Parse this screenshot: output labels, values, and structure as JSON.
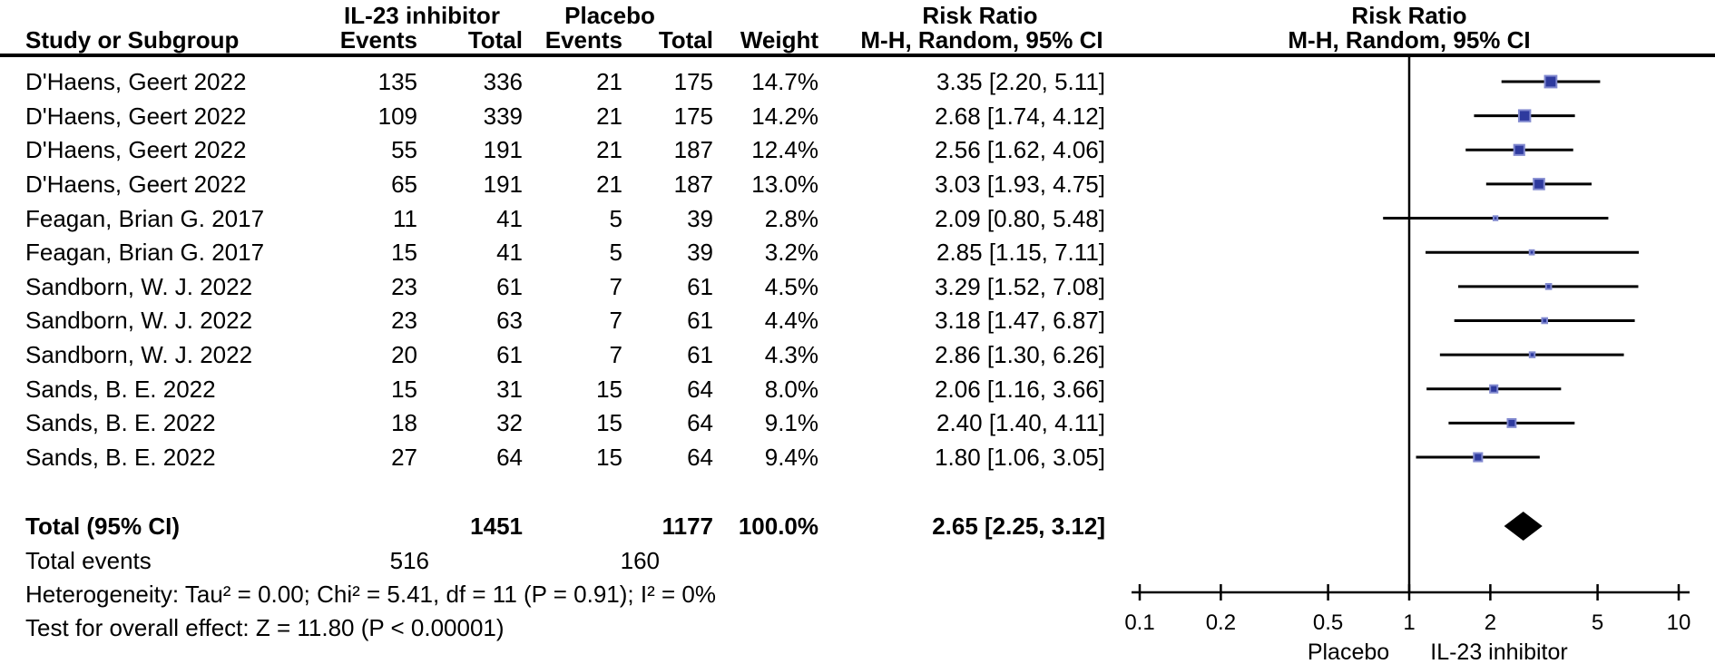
{
  "header": {
    "group_treatment": "IL-23 inhibitor",
    "group_control": "Placebo",
    "study": "Study or Subgroup",
    "events": "Events",
    "total": "Total",
    "weight": "Weight",
    "risk_ratio_line1": "Risk Ratio",
    "risk_ratio_line2": "M-H, Random, 95% CI"
  },
  "chart_data": {
    "type": "forest",
    "x_scale": "log10",
    "x_range": [
      0.1,
      10
    ],
    "axis_ticks": [
      "0.1",
      "0.2",
      "0.5",
      "1",
      "2",
      "5",
      "10"
    ],
    "axis_tick_values": [
      0.1,
      0.2,
      0.5,
      1,
      2,
      5,
      10
    ],
    "null_line": 1,
    "axis_left_label": "Placebo",
    "axis_right_label": "IL-23 inhibitor",
    "marker_color": "#2e3a9e",
    "marker_halo_color": "#8189cf",
    "line_color": "#000000",
    "rows": [
      {
        "study": "D'Haens, Geert 2022",
        "events1": 135,
        "total1": 336,
        "events2": 21,
        "total2": 175,
        "weight": "14.7%",
        "rr": 3.35,
        "lo": 2.2,
        "hi": 5.11,
        "ci_label": "3.35 [2.20, 5.11]"
      },
      {
        "study": "D'Haens, Geert 2022",
        "events1": 109,
        "total1": 339,
        "events2": 21,
        "total2": 175,
        "weight": "14.2%",
        "rr": 2.68,
        "lo": 1.74,
        "hi": 4.12,
        "ci_label": "2.68 [1.74, 4.12]"
      },
      {
        "study": "D'Haens, Geert 2022",
        "events1": 55,
        "total1": 191,
        "events2": 21,
        "total2": 187,
        "weight": "12.4%",
        "rr": 2.56,
        "lo": 1.62,
        "hi": 4.06,
        "ci_label": "2.56 [1.62, 4.06]"
      },
      {
        "study": "D'Haens, Geert 2022",
        "events1": 65,
        "total1": 191,
        "events2": 21,
        "total2": 187,
        "weight": "13.0%",
        "rr": 3.03,
        "lo": 1.93,
        "hi": 4.75,
        "ci_label": "3.03 [1.93, 4.75]"
      },
      {
        "study": "Feagan, Brian G. 2017",
        "events1": 11,
        "total1": 41,
        "events2": 5,
        "total2": 39,
        "weight": "2.8%",
        "rr": 2.09,
        "lo": 0.8,
        "hi": 5.48,
        "ci_label": "2.09 [0.80, 5.48]"
      },
      {
        "study": "Feagan, Brian G. 2017",
        "events1": 15,
        "total1": 41,
        "events2": 5,
        "total2": 39,
        "weight": "3.2%",
        "rr": 2.85,
        "lo": 1.15,
        "hi": 7.11,
        "ci_label": "2.85 [1.15, 7.11]"
      },
      {
        "study": "Sandborn, W. J. 2022",
        "events1": 23,
        "total1": 61,
        "events2": 7,
        "total2": 61,
        "weight": "4.5%",
        "rr": 3.29,
        "lo": 1.52,
        "hi": 7.08,
        "ci_label": "3.29 [1.52, 7.08]"
      },
      {
        "study": "Sandborn, W. J. 2022",
        "events1": 23,
        "total1": 63,
        "events2": 7,
        "total2": 61,
        "weight": "4.4%",
        "rr": 3.18,
        "lo": 1.47,
        "hi": 6.87,
        "ci_label": "3.18 [1.47, 6.87]"
      },
      {
        "study": "Sandborn, W. J. 2022",
        "events1": 20,
        "total1": 61,
        "events2": 7,
        "total2": 61,
        "weight": "4.3%",
        "rr": 2.86,
        "lo": 1.3,
        "hi": 6.26,
        "ci_label": "2.86 [1.30, 6.26]"
      },
      {
        "study": "Sands, B. E. 2022",
        "events1": 15,
        "total1": 31,
        "events2": 15,
        "total2": 64,
        "weight": "8.0%",
        "rr": 2.06,
        "lo": 1.16,
        "hi": 3.66,
        "ci_label": "2.06 [1.16, 3.66]"
      },
      {
        "study": "Sands, B. E. 2022",
        "events1": 18,
        "total1": 32,
        "events2": 15,
        "total2": 64,
        "weight": "9.1%",
        "rr": 2.4,
        "lo": 1.4,
        "hi": 4.11,
        "ci_label": "2.40 [1.40, 4.11]"
      },
      {
        "study": "Sands, B. E. 2022",
        "events1": 27,
        "total1": 64,
        "events2": 15,
        "total2": 64,
        "weight": "9.4%",
        "rr": 1.8,
        "lo": 1.06,
        "hi": 3.05,
        "ci_label": "1.80 [1.06, 3.05]"
      }
    ],
    "total": {
      "label": "Total (95% CI)",
      "total1": 1451,
      "total2": 1177,
      "weight": "100.0%",
      "rr": 2.65,
      "lo": 2.25,
      "hi": 3.12,
      "ci_label": "2.65 [2.25, 3.12]"
    },
    "total_events": {
      "label": "Total events",
      "events1": 516,
      "events2": 160
    },
    "heterogeneity": "Heterogeneity: Tau² = 0.00; Chi² = 5.41, df = 11 (P = 0.91); I² = 0%",
    "overall_effect": "Test for overall effect: Z = 11.80 (P < 0.00001)"
  }
}
